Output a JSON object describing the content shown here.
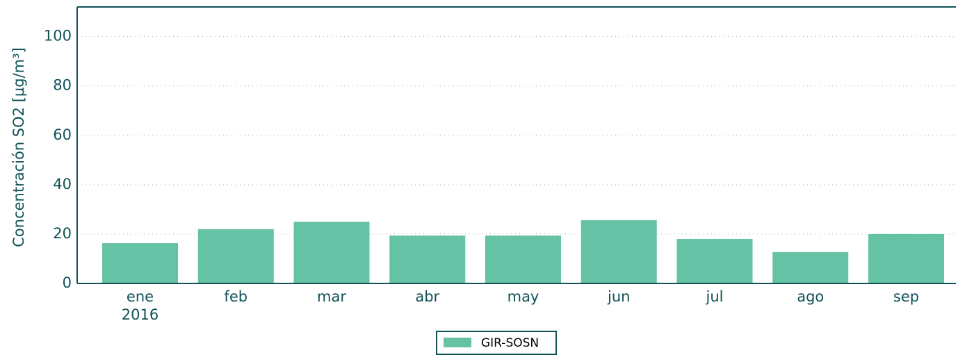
{
  "chart_data": {
    "type": "bar",
    "y_label": "Concentración SO2 [μg/m³]",
    "categories": [
      "ene\n2016",
      "feb",
      "mar",
      "abr",
      "may",
      "jun",
      "jul",
      "ago",
      "sep"
    ],
    "series": [
      {
        "name": "GIR-SOSN",
        "color": "#66c2a5",
        "values": [
          16.3,
          22,
          25,
          19.4,
          19.4,
          25.6,
          18,
          12.7,
          20
        ]
      }
    ],
    "ylim": [
      0,
      112
    ],
    "yticks": [
      0,
      20,
      40,
      60,
      80,
      100
    ],
    "grid": true,
    "legend": "lower center"
  }
}
